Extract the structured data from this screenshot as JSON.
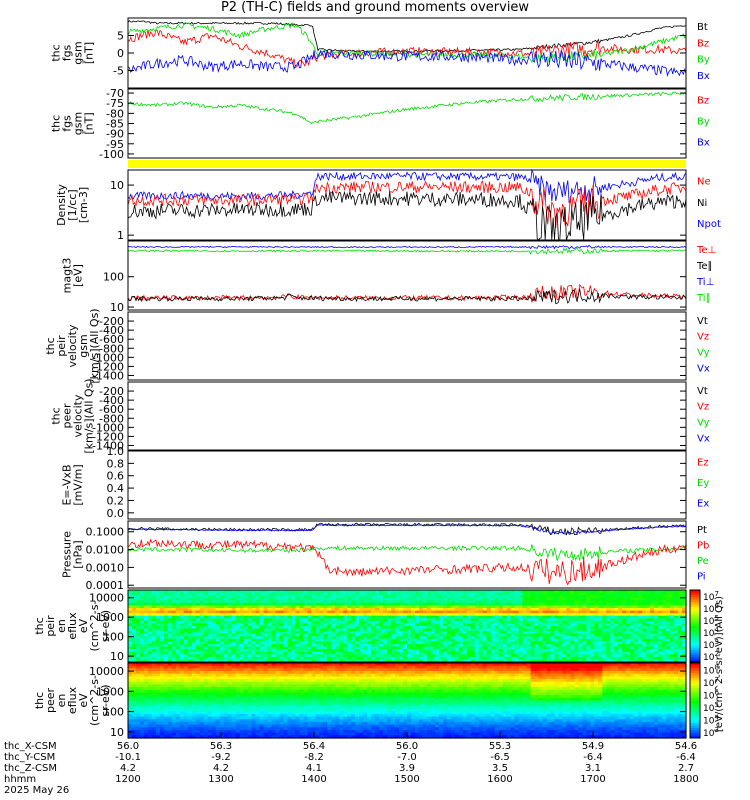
{
  "title": "P2 (TH-C) fields and ground moments overview",
  "colors": {
    "black": "#000000",
    "red": "#ff0000",
    "green": "#00dd00",
    "blue": "#0000ff",
    "yellow": "#ffff00"
  },
  "chart_data": [
    {
      "type": "line",
      "id": "fgs",
      "ylabel": [
        "thc",
        "fgs",
        "gsm",
        "[nT]"
      ],
      "ylim": [
        -10,
        10
      ],
      "yticks": [
        -5,
        0,
        5
      ],
      "legend": [
        {
          "name": "Bt",
          "color": "black"
        },
        {
          "name": "Bz",
          "color": "red"
        },
        {
          "name": "By",
          "color": "green"
        },
        {
          "name": "Bx",
          "color": "blue"
        }
      ],
      "series": [
        {
          "name": "Bt",
          "color": "black",
          "x": [
            0,
            0.03,
            0.05,
            0.1,
            0.18,
            0.26,
            0.3,
            0.33,
            0.34,
            0.4,
            0.5,
            0.6,
            0.7,
            0.73,
            0.76,
            0.8,
            0.85,
            0.9,
            0.95,
            1
          ],
          "y": [
            9,
            9,
            8.5,
            8.5,
            8.5,
            8.5,
            8,
            8,
            1,
            0.5,
            0.5,
            0.7,
            1,
            1.5,
            2,
            2.5,
            3.5,
            5,
            7,
            8
          ],
          "noise": 0.3
        },
        {
          "name": "Bz",
          "color": "red",
          "x": [
            0,
            0.05,
            0.1,
            0.15,
            0.2,
            0.25,
            0.3,
            0.32,
            0.34,
            0.4,
            0.5,
            0.6,
            0.7,
            0.73,
            0.76,
            0.8,
            0.85,
            0.9,
            0.95,
            1
          ],
          "y": [
            4,
            6,
            3,
            5,
            2,
            0,
            -3,
            -3,
            -1,
            0,
            0.5,
            0.3,
            0,
            -0.5,
            0.5,
            1,
            1.5,
            1,
            1,
            0.5
          ],
          "noise": 1.2
        },
        {
          "name": "By",
          "color": "green",
          "x": [
            0,
            0.05,
            0.1,
            0.15,
            0.2,
            0.25,
            0.3,
            0.32,
            0.34,
            0.4,
            0.5,
            0.6,
            0.7,
            0.73,
            0.76,
            0.8,
            0.85,
            0.9,
            0.95,
            1
          ],
          "y": [
            6,
            7,
            8,
            7,
            5,
            7,
            8,
            5,
            0,
            0,
            -0.5,
            -0.5,
            -1,
            -1.5,
            -1.2,
            -1,
            -0.5,
            1,
            3,
            5
          ],
          "noise": 0.8
        },
        {
          "name": "Bx",
          "color": "blue",
          "x": [
            0,
            0.05,
            0.1,
            0.15,
            0.2,
            0.25,
            0.3,
            0.32,
            0.34,
            0.4,
            0.5,
            0.6,
            0.7,
            0.73,
            0.76,
            0.8,
            0.85,
            0.9,
            0.95,
            1
          ],
          "y": [
            -5,
            -3,
            -2,
            -4,
            -3,
            -4,
            -4,
            -2,
            0,
            -0.5,
            -1,
            -1,
            -2,
            -1.5,
            -2,
            -2.5,
            -3,
            -4,
            -5,
            -6
          ],
          "noise": 1.5
        }
      ]
    },
    {
      "type": "line",
      "id": "fgs2",
      "ylabel": [
        "thc",
        "fgs",
        "gsm",
        "[nT]"
      ],
      "ylim": [
        -102,
        -68
      ],
      "yticks": [
        -100,
        -95,
        -90,
        -85,
        -80,
        -75,
        -70
      ],
      "legend": [
        {
          "name": "Bz",
          "color": "red"
        },
        {
          "name": "By",
          "color": "green"
        },
        {
          "name": "Bx",
          "color": "blue"
        }
      ],
      "series": [
        {
          "name": "By",
          "color": "green",
          "x": [
            0,
            0.05,
            0.1,
            0.15,
            0.2,
            0.25,
            0.3,
            0.33,
            0.34,
            0.4,
            0.5,
            0.6,
            0.7,
            0.8,
            0.9,
            1
          ],
          "y": [
            -75,
            -76,
            -75,
            -77,
            -76,
            -78,
            -80,
            -85,
            -84,
            -82,
            -78,
            -75,
            -73,
            -72,
            -71,
            -70
          ],
          "noise": 0.8
        }
      ]
    },
    {
      "type": "flag",
      "id": "flag",
      "ylabel": [],
      "legend": []
    },
    {
      "type": "line",
      "id": "density",
      "log": true,
      "ylabel": [
        "Density",
        "[1/cc]",
        "[cm-3]"
      ],
      "ylim": [
        0.8,
        20
      ],
      "yticks": [
        1,
        10
      ],
      "legend": [
        {
          "name": "Ne",
          "color": "red"
        },
        {
          "name": "Ni",
          "color": "black"
        },
        {
          "name": "Npot",
          "color": "blue"
        }
      ],
      "series": [
        {
          "name": "Npot",
          "color": "blue",
          "x": [
            0,
            0.1,
            0.2,
            0.3,
            0.33,
            0.34,
            0.5,
            0.7,
            0.72,
            0.73,
            0.76,
            0.8,
            0.85,
            0.9,
            0.95,
            1
          ],
          "y": [
            6,
            6.2,
            6,
            6.3,
            7,
            15,
            15,
            14.5,
            13,
            10,
            7,
            8,
            9,
            11,
            14,
            15
          ],
          "noise": 0.08
        },
        {
          "name": "Ne",
          "color": "red",
          "x": [
            0,
            0.1,
            0.2,
            0.3,
            0.33,
            0.34,
            0.5,
            0.7,
            0.72,
            0.73,
            0.76,
            0.8,
            0.85,
            0.9,
            0.95,
            1
          ],
          "y": [
            5,
            5,
            5,
            5.2,
            5.5,
            9,
            9.2,
            9,
            7,
            5,
            3,
            3.5,
            5,
            6,
            8,
            9
          ],
          "noise": 0.12
        },
        {
          "name": "Ni",
          "color": "black",
          "x": [
            0,
            0.1,
            0.2,
            0.3,
            0.33,
            0.34,
            0.5,
            0.7,
            0.72,
            0.73,
            0.76,
            0.8,
            0.85,
            0.9,
            0.95,
            1
          ],
          "y": [
            3,
            3.1,
            3.2,
            3.3,
            3.4,
            5.5,
            5.4,
            5,
            3,
            2,
            1.2,
            1.6,
            2.5,
            3.5,
            4.5,
            5
          ],
          "noise": 0.15
        }
      ]
    },
    {
      "type": "line",
      "id": "temp",
      "log": true,
      "ylabel": [
        "magt3",
        "[eV]"
      ],
      "ylim": [
        8,
        1500
      ],
      "yticks": [
        10,
        100
      ],
      "legend": [
        {
          "name": "Te⊥",
          "color": "red"
        },
        {
          "name": "Te∥",
          "color": "black"
        },
        {
          "name": "Ti⊥",
          "color": "blue"
        },
        {
          "name": "Ti∥",
          "color": "green"
        }
      ],
      "series": [
        {
          "name": "Ti⊥",
          "color": "blue",
          "x": [
            0,
            0.2,
            0.4,
            0.6,
            0.8,
            1
          ],
          "y": [
            950,
            960,
            940,
            950,
            960,
            950
          ],
          "noise": 0.02
        },
        {
          "name": "Ti∥",
          "color": "green",
          "x": [
            0,
            0.2,
            0.4,
            0.6,
            0.8,
            1
          ],
          "y": [
            720,
            700,
            710,
            690,
            700,
            720
          ],
          "noise": 0.03
        },
        {
          "name": "Te⊥",
          "color": "red",
          "x": [
            0,
            0.2,
            0.28,
            0.29,
            0.3,
            0.4,
            0.6,
            0.72,
            0.73,
            0.76,
            0.82,
            0.9,
            1
          ],
          "y": [
            20,
            20,
            21,
            25,
            21,
            20,
            20,
            21,
            28,
            30,
            32,
            25,
            22
          ],
          "noise": 0.08
        },
        {
          "name": "Te∥",
          "color": "black",
          "x": [
            0,
            0.2,
            0.28,
            0.29,
            0.3,
            0.4,
            0.6,
            0.72,
            0.73,
            0.76,
            0.82,
            0.9,
            1
          ],
          "y": [
            19,
            19,
            20,
            24,
            20,
            19,
            19,
            19,
            20,
            22,
            25,
            22,
            20
          ],
          "noise": 0.08
        }
      ]
    },
    {
      "type": "line",
      "id": "peir",
      "ylabel": [
        "thc",
        "peir",
        "velocity",
        "gsm",
        "[km/s](All Qs)"
      ],
      "ylim": [
        -1500,
        0
      ],
      "yticks": [
        -1400,
        -1200,
        -1000,
        -800,
        -600,
        -400,
        -200
      ],
      "legend": [
        {
          "name": "Vt",
          "color": "black"
        },
        {
          "name": "Vz",
          "color": "red"
        },
        {
          "name": "Vy",
          "color": "green"
        },
        {
          "name": "Vx",
          "color": "blue"
        }
      ],
      "series": []
    },
    {
      "type": "line",
      "id": "peer",
      "ylabel": [
        "thc",
        "peer",
        "velocity",
        "[km/s](All Qs)"
      ],
      "ylim": [
        -1500,
        0
      ],
      "yticks": [
        -1400,
        -1200,
        -1000,
        -800,
        -600,
        -400,
        -200
      ],
      "legend": [
        {
          "name": "Vt",
          "color": "black"
        },
        {
          "name": "Vz",
          "color": "red"
        },
        {
          "name": "Vy",
          "color": "green"
        },
        {
          "name": "Vx",
          "color": "blue"
        }
      ],
      "series": []
    },
    {
      "type": "line",
      "id": "efield",
      "ylabel": [
        "E=-VxB",
        "[mV/m]"
      ],
      "ylim": [
        -0.1,
        1.0
      ],
      "yticks": [
        0,
        0.2,
        0.4,
        0.6,
        0.8,
        1.0
      ],
      "ytickfmt": 1,
      "legend": [
        {
          "name": "Ez",
          "color": "red"
        },
        {
          "name": "Ey",
          "color": "green"
        },
        {
          "name": "Ex",
          "color": "blue"
        }
      ],
      "series": []
    },
    {
      "type": "line",
      "id": "pressure",
      "log": true,
      "ylabel": [
        "Pressure",
        "[nPa]"
      ],
      "ylim": [
        7e-05,
        0.4
      ],
      "yticks": [
        0.0001,
        0.001,
        0.01,
        0.1
      ],
      "yticklabels": [
        "0.0001",
        "0.0010",
        "0.0100",
        "0.1000"
      ],
      "legend": [
        {
          "name": "Pt",
          "color": "black"
        },
        {
          "name": "Pb",
          "color": "red"
        },
        {
          "name": "Pe",
          "color": "green"
        },
        {
          "name": "Pi",
          "color": "blue"
        }
      ],
      "series": [
        {
          "name": "Pt",
          "color": "black",
          "x": [
            0,
            0.1,
            0.2,
            0.3,
            0.33,
            0.34,
            0.5,
            0.7,
            0.72,
            0.73,
            0.76,
            0.8,
            0.85,
            0.9,
            0.95,
            1
          ],
          "y": [
            0.15,
            0.14,
            0.13,
            0.13,
            0.13,
            0.25,
            0.25,
            0.24,
            0.2,
            0.15,
            0.1,
            0.1,
            0.12,
            0.15,
            0.2,
            0.22
          ],
          "noise": 0.08
        },
        {
          "name": "Pi",
          "color": "blue",
          "x": [
            0,
            0.1,
            0.2,
            0.3,
            0.33,
            0.34,
            0.5,
            0.7,
            0.72,
            0.73,
            0.76,
            0.8,
            0.85,
            0.9,
            0.95,
            1
          ],
          "y": [
            0.14,
            0.13,
            0.12,
            0.12,
            0.12,
            0.23,
            0.23,
            0.22,
            0.18,
            0.14,
            0.09,
            0.09,
            0.11,
            0.14,
            0.18,
            0.2
          ],
          "noise": 0.03
        },
        {
          "name": "Pe",
          "color": "green",
          "x": [
            0,
            0.1,
            0.2,
            0.3,
            0.34,
            0.5,
            0.7,
            0.72,
            0.75,
            0.8,
            0.85,
            0.9,
            0.95,
            1
          ],
          "y": [
            0.01,
            0.01,
            0.009,
            0.009,
            0.012,
            0.012,
            0.012,
            0.01,
            0.006,
            0.005,
            0.007,
            0.009,
            0.01,
            0.012
          ],
          "noise": 0.12
        },
        {
          "name": "Pb",
          "color": "red",
          "x": [
            0,
            0.05,
            0.1,
            0.2,
            0.3,
            0.33,
            0.35,
            0.36,
            0.4,
            0.5,
            0.6,
            0.7,
            0.73,
            0.76,
            0.8,
            0.85,
            0.9,
            0.95,
            1
          ],
          "y": [
            0.02,
            0.025,
            0.02,
            0.018,
            0.015,
            0.01,
            0.002,
            0.0008,
            0.0005,
            0.0007,
            0.0008,
            0.001,
            0.0008,
            0.0005,
            0.0006,
            0.001,
            0.003,
            0.008,
            0.015
          ],
          "noise": 0.25
        }
      ]
    },
    {
      "type": "heatmap",
      "id": "peir_spec",
      "log": true,
      "ylabel": [
        "thc",
        "peir",
        "en",
        "eflux",
        "eV",
        "(cm^2-s-",
        "sr-eV)"
      ],
      "ylim": [
        5,
        25000
      ],
      "yticks": [
        10,
        100,
        1000,
        10000
      ],
      "legend": []
    },
    {
      "type": "heatmap",
      "id": "peer_spec",
      "log": true,
      "ylabel": [
        "thc",
        "peer",
        "en",
        "eflux",
        "eV",
        "(cm^2-s-",
        "sr-eV)"
      ],
      "ylim": [
        5,
        25000
      ],
      "yticks": [
        10,
        100,
        1000,
        10000
      ],
      "legend": []
    }
  ],
  "colorbar": {
    "label": "[eV/(cm^2-s-sr-eV)](All Qs)",
    "top": {
      "ticks": [
        "10^7",
        "10^6",
        "10^5",
        "10^4",
        "10^3",
        "10^2"
      ]
    },
    "bottom": {
      "ticks": [
        "10^8",
        "10^7",
        "10^6",
        "10^5",
        "10^4",
        "10^3"
      ]
    }
  },
  "xaxis": {
    "rows": [
      {
        "label": "thc_X-CSM",
        "values": [
          "56.0",
          "56.3",
          "56.4",
          "56.0",
          "55.3",
          "54.9",
          "54.6"
        ]
      },
      {
        "label": "thc_Y-CSM",
        "values": [
          "-10.1",
          "-9.2",
          "-8.2",
          "-7.0",
          "-6.5",
          "-6.4",
          "-6.4"
        ]
      },
      {
        "label": "thc_Z-CSM",
        "values": [
          "4.2",
          "4.2",
          "4.1",
          "3.9",
          "3.5",
          "3.1",
          "2.7"
        ]
      },
      {
        "label": "hhmm",
        "values": [
          "1200",
          "1300",
          "1400",
          "1500",
          "1600",
          "1700",
          "1800"
        ]
      }
    ],
    "date": "2025 May 26"
  }
}
